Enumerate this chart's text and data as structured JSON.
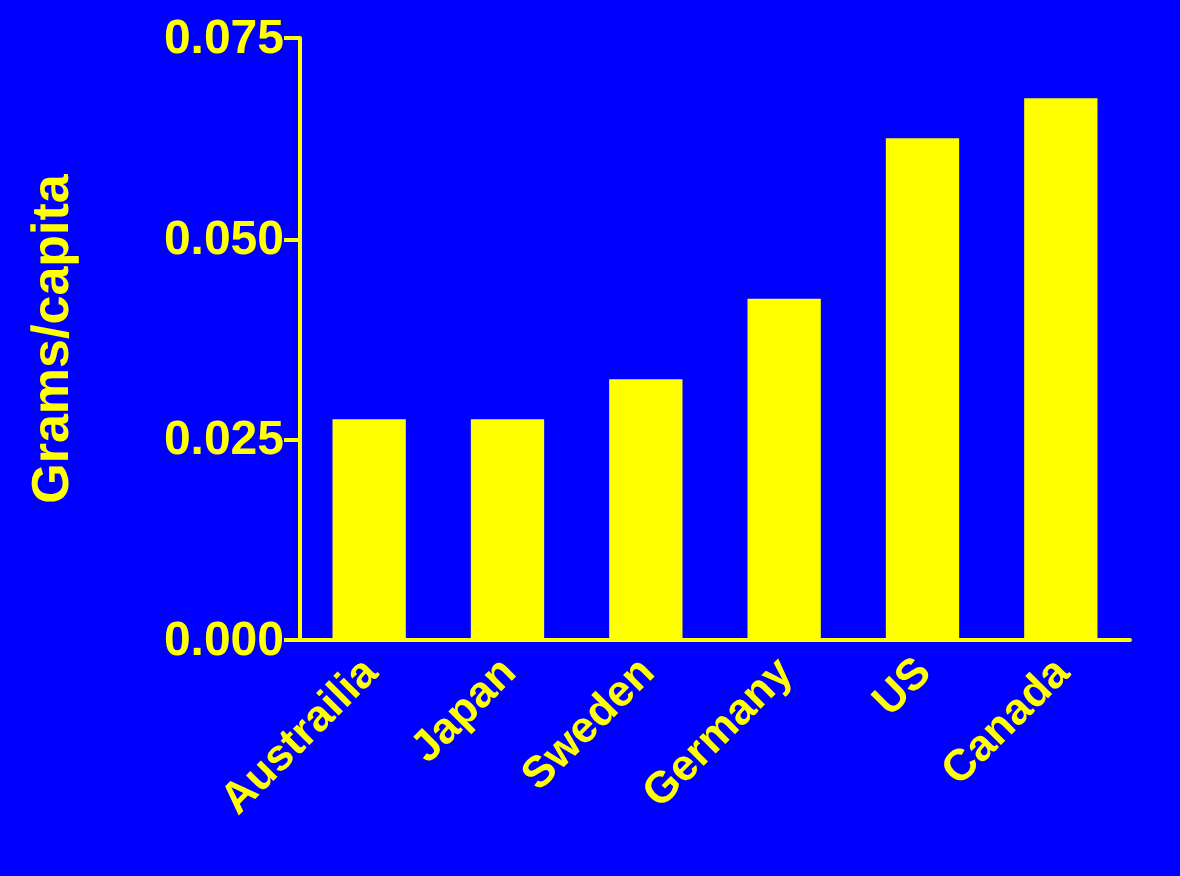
{
  "chart_data": {
    "type": "bar",
    "ylabel": "Grams/capita",
    "categories": [
      "Austrailia",
      "Japan",
      "Sweden",
      "Germany",
      "US",
      "Canada"
    ],
    "values": [
      0.0275,
      0.0275,
      0.0325,
      0.0425,
      0.0625,
      0.0675
    ],
    "color": "#ffff00",
    "ylim": [
      0,
      0.075
    ],
    "yticks": [
      {
        "value": 0,
        "label": "0.000"
      },
      {
        "value": 0.025,
        "label": "0.025"
      },
      {
        "value": 0.05,
        "label": "0.050"
      },
      {
        "value": 0.075,
        "label": "0.075"
      }
    ],
    "grid": false
  }
}
